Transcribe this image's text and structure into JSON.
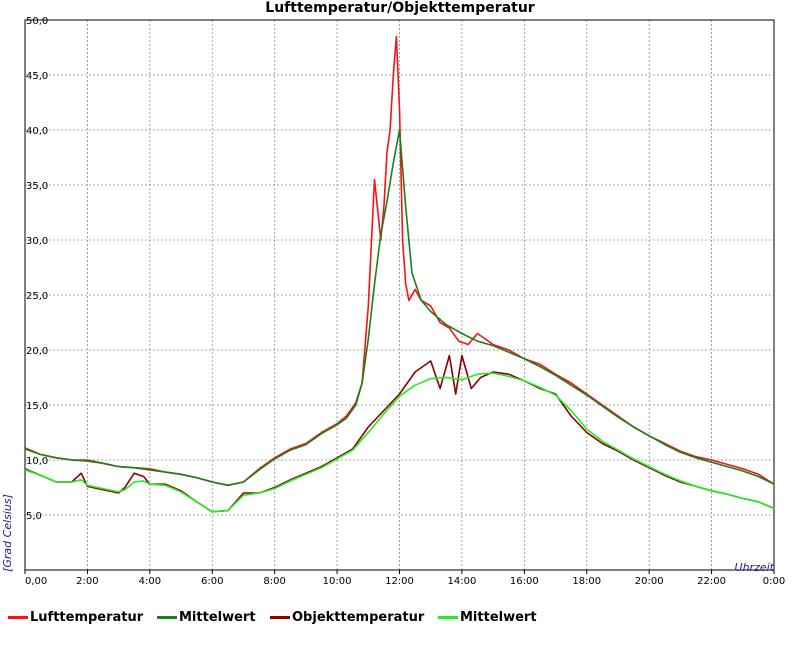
{
  "chart_data": {
    "type": "line",
    "title": "Lufttemperatur/Objekttemperatur",
    "xlabel": "Uhrzeit",
    "ylabel": "[Grad Celsius]",
    "x_ticks": [
      "0,00",
      "2:00",
      "4:00",
      "6:00",
      "8:00",
      "10:00",
      "12:00",
      "14:00",
      "16:00",
      "18:00",
      "20:00",
      "22:00",
      "0:00"
    ],
    "y_ticks": [
      "5,0",
      "10,0",
      "15,0",
      "20,0",
      "25,0",
      "30,0",
      "35,0",
      "40,0",
      "45,0",
      "50,0"
    ],
    "xlim": [
      0,
      24
    ],
    "ylim": [
      0,
      50
    ],
    "grid": true,
    "legend_position": "bottom",
    "series": [
      {
        "name": "Lufttemperatur",
        "color": "#ff1010",
        "x": [
          0,
          0.5,
          1,
          1.5,
          2,
          2.5,
          3,
          3.5,
          4,
          4.5,
          5,
          5.5,
          6,
          6.5,
          7,
          7.5,
          8,
          8.5,
          9,
          9.5,
          10,
          10.3,
          10.6,
          10.8,
          11.0,
          11.2,
          11.4,
          11.5,
          11.6,
          11.7,
          11.8,
          11.9,
          12.0,
          12.1,
          12.2,
          12.3,
          12.5,
          12.7,
          13.0,
          13.3,
          13.6,
          13.9,
          14.2,
          14.5,
          15.0,
          15.5,
          16.0,
          16.5,
          17.0,
          17.5,
          18.0,
          18.5,
          19.0,
          19.5,
          20.0,
          20.5,
          21.0,
          21.5,
          22.0,
          22.5,
          23.0,
          23.5,
          24.0
        ],
        "values": [
          11.1,
          10.5,
          10.2,
          10.0,
          10.0,
          9.7,
          9.4,
          9.3,
          9.2,
          8.9,
          8.7,
          8.4,
          8.0,
          7.7,
          8.0,
          9.2,
          10.2,
          11.0,
          11.5,
          12.5,
          13.3,
          14.0,
          15.2,
          17.0,
          24.0,
          35.5,
          30.0,
          33.0,
          38.0,
          40.0,
          45.0,
          48.5,
          42.0,
          30.0,
          26.0,
          24.5,
          25.5,
          24.5,
          24.0,
          22.5,
          22.0,
          20.8,
          20.5,
          21.5,
          20.5,
          20.0,
          19.2,
          18.7,
          17.8,
          17.0,
          16.0,
          15.0,
          14.0,
          13.0,
          12.2,
          11.5,
          10.8,
          10.3,
          10.0,
          9.6,
          9.2,
          8.7,
          7.8
        ]
      },
      {
        "name": "Mittelwert",
        "color": "#1a801a",
        "x": [
          0,
          0.5,
          1,
          1.5,
          2,
          2.5,
          3,
          3.5,
          4,
          4.5,
          5,
          5.5,
          6,
          6.5,
          7,
          7.5,
          8,
          8.5,
          9,
          9.5,
          10,
          10.3,
          10.6,
          10.8,
          11.0,
          11.2,
          11.4,
          11.6,
          11.8,
          12.0,
          12.2,
          12.4,
          12.7,
          13.0,
          13.5,
          14.0,
          14.5,
          15.0,
          15.5,
          16.0,
          16.5,
          17.0,
          17.5,
          18.0,
          18.5,
          19.0,
          19.5,
          20.0,
          20.5,
          21.0,
          21.5,
          22.0,
          22.5,
          23.0,
          23.5,
          24.0
        ],
        "values": [
          11.0,
          10.5,
          10.2,
          10.0,
          9.9,
          9.7,
          9.4,
          9.3,
          9.1,
          8.9,
          8.7,
          8.4,
          8.0,
          7.7,
          8.0,
          9.1,
          10.1,
          10.9,
          11.4,
          12.4,
          13.2,
          13.8,
          15.0,
          17.0,
          21.0,
          26.0,
          30.5,
          33.5,
          37.0,
          40.0,
          33.0,
          27.0,
          24.5,
          23.5,
          22.3,
          21.5,
          20.8,
          20.4,
          19.8,
          19.2,
          18.5,
          17.7,
          16.8,
          15.9,
          14.9,
          13.9,
          13.0,
          12.2,
          11.4,
          10.7,
          10.2,
          9.8,
          9.4,
          9.0,
          8.5,
          7.8
        ]
      },
      {
        "name": "Objekttemperatur",
        "color": "#8b0000",
        "x": [
          0,
          0.5,
          1,
          1.5,
          1.8,
          2.0,
          2.5,
          3,
          3.2,
          3.5,
          3.8,
          4.0,
          4.5,
          5,
          5.5,
          6,
          6.5,
          7,
          7.5,
          8,
          8.5,
          9,
          9.5,
          10,
          10.5,
          11.0,
          11.5,
          12.0,
          12.5,
          13.0,
          13.3,
          13.6,
          13.8,
          14.0,
          14.3,
          14.6,
          15.0,
          15.5,
          16.0,
          16.5,
          17.0,
          17.5,
          18.0,
          18.5,
          19.0,
          19.5,
          20.0,
          20.5,
          21.0,
          21.5,
          22.0,
          22.5,
          23.0,
          23.5,
          24.0
        ],
        "values": [
          9.2,
          8.6,
          8.0,
          8.0,
          8.8,
          7.6,
          7.3,
          7.0,
          7.5,
          8.8,
          8.5,
          7.8,
          7.8,
          7.2,
          6.2,
          5.3,
          5.4,
          7.0,
          7.0,
          7.5,
          8.2,
          8.8,
          9.4,
          10.2,
          11.0,
          13.0,
          14.5,
          16.0,
          18.0,
          19.0,
          16.5,
          19.5,
          16.0,
          19.5,
          16.5,
          17.5,
          18.0,
          17.8,
          17.2,
          16.5,
          16.0,
          14.0,
          12.5,
          11.5,
          10.8,
          10.0,
          9.3,
          8.6,
          8.0,
          7.6,
          7.2,
          6.9,
          6.5,
          6.2,
          5.6
        ]
      },
      {
        "name": "Mittelwert",
        "color": "#22ee22",
        "x": [
          0,
          0.5,
          1,
          1.5,
          1.8,
          2.0,
          2.5,
          3,
          3.2,
          3.5,
          3.8,
          4.0,
          4.5,
          5,
          5.5,
          6,
          6.5,
          7,
          7.5,
          8,
          8.5,
          9,
          9.5,
          10,
          10.5,
          11.0,
          11.5,
          12.0,
          12.5,
          13.0,
          13.5,
          14.0,
          14.5,
          15.0,
          15.5,
          16.0,
          16.5,
          17.0,
          17.5,
          18.0,
          18.5,
          19.0,
          19.5,
          20.0,
          20.5,
          21.0,
          21.5,
          22.0,
          22.5,
          23.0,
          23.5,
          24.0
        ],
        "values": [
          9.1,
          8.6,
          8.0,
          8.0,
          8.2,
          7.7,
          7.4,
          7.1,
          7.3,
          8.0,
          8.1,
          7.8,
          7.7,
          7.1,
          6.2,
          5.3,
          5.4,
          6.8,
          7.0,
          7.4,
          8.1,
          8.7,
          9.3,
          10.1,
          10.9,
          12.5,
          14.2,
          15.8,
          16.8,
          17.4,
          17.5,
          17.3,
          17.8,
          17.9,
          17.6,
          17.2,
          16.6,
          15.9,
          14.5,
          12.8,
          11.7,
          10.9,
          10.1,
          9.4,
          8.7,
          8.1,
          7.6,
          7.2,
          6.9,
          6.5,
          6.2,
          5.6
        ]
      }
    ]
  }
}
